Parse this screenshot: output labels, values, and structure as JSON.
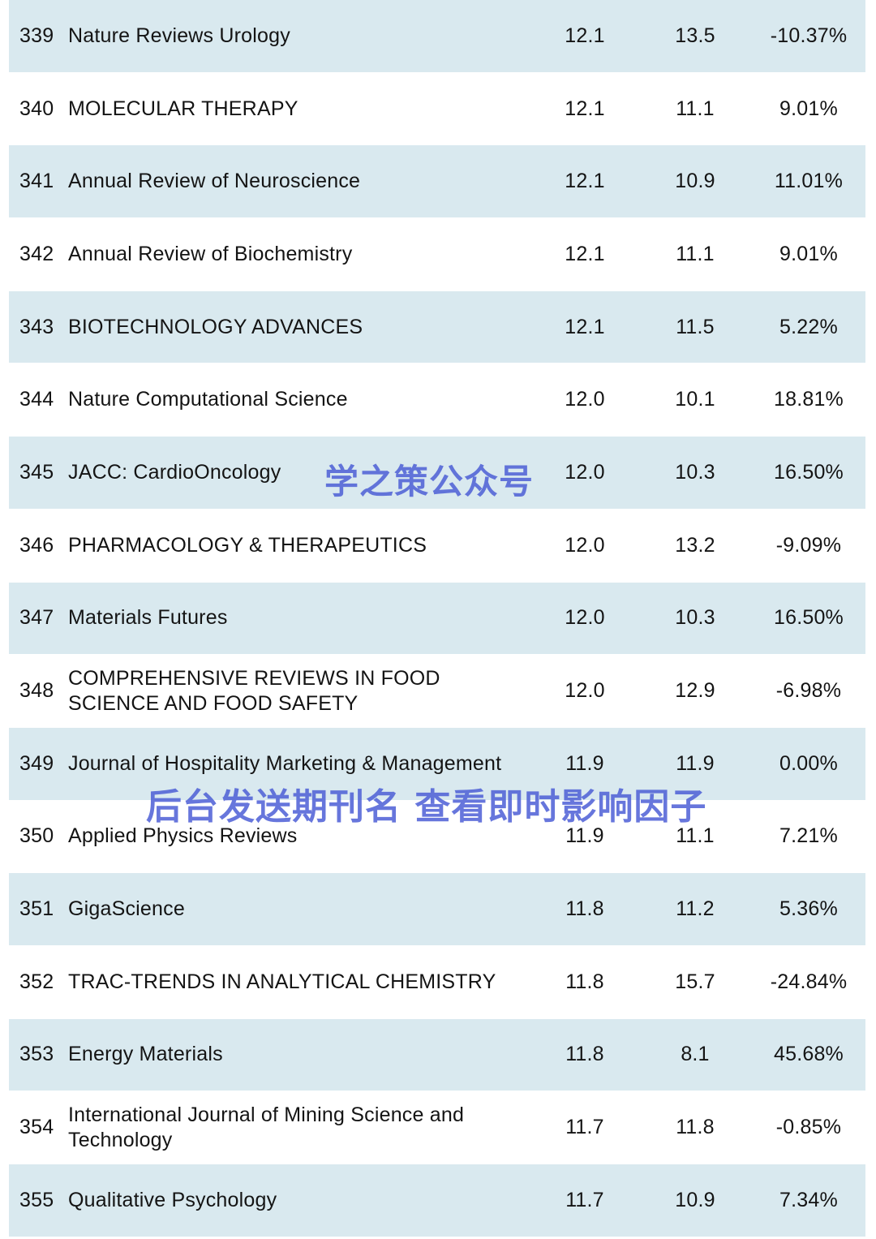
{
  "rows": [
    {
      "rank": "339",
      "journal": "Nature Reviews Urology",
      "if_new": "12.1",
      "if_old": "13.5",
      "change": "-10.37%"
    },
    {
      "rank": "340",
      "journal": "MOLECULAR THERAPY",
      "if_new": "12.1",
      "if_old": "11.1",
      "change": "9.01%"
    },
    {
      "rank": "341",
      "journal": "Annual Review of Neuroscience",
      "if_new": "12.1",
      "if_old": "10.9",
      "change": "11.01%"
    },
    {
      "rank": "342",
      "journal": "Annual Review of Biochemistry",
      "if_new": "12.1",
      "if_old": "11.1",
      "change": "9.01%"
    },
    {
      "rank": "343",
      "journal": "BIOTECHNOLOGY ADVANCES",
      "if_new": "12.1",
      "if_old": "11.5",
      "change": "5.22%"
    },
    {
      "rank": "344",
      "journal": "Nature Computational Science",
      "if_new": "12.0",
      "if_old": "10.1",
      "change": "18.81%"
    },
    {
      "rank": "345",
      "journal": "JACC: CardioOncology",
      "if_new": "12.0",
      "if_old": "10.3",
      "change": "16.50%"
    },
    {
      "rank": "346",
      "journal": "PHARMACOLOGY & THERAPEUTICS",
      "if_new": "12.0",
      "if_old": "13.2",
      "change": "-9.09%"
    },
    {
      "rank": "347",
      "journal": "Materials Futures",
      "if_new": "12.0",
      "if_old": "10.3",
      "change": "16.50%"
    },
    {
      "rank": "348",
      "journal": "COMPREHENSIVE REVIEWS IN FOOD SCIENCE AND FOOD SAFETY",
      "if_new": "12.0",
      "if_old": "12.9",
      "change": "-6.98%"
    },
    {
      "rank": "349",
      "journal": "Journal of Hospitality Marketing & Management",
      "if_new": "11.9",
      "if_old": "11.9",
      "change": "0.00%"
    },
    {
      "rank": "350",
      "journal": "Applied Physics Reviews",
      "if_new": "11.9",
      "if_old": "11.1",
      "change": "7.21%"
    },
    {
      "rank": "351",
      "journal": "GigaScience",
      "if_new": "11.8",
      "if_old": "11.2",
      "change": "5.36%"
    },
    {
      "rank": "352",
      "journal": "TRAC-TRENDS IN ANALYTICAL CHEMISTRY",
      "if_new": "11.8",
      "if_old": "15.7",
      "change": "-24.84%"
    },
    {
      "rank": "353",
      "journal": "Energy Materials",
      "if_new": "11.8",
      "if_old": "8.1",
      "change": "45.68%"
    },
    {
      "rank": "354",
      "journal": "International Journal of Mining Science and Technology",
      "if_new": "11.7",
      "if_old": "11.8",
      "change": "-0.85%"
    },
    {
      "rank": "355",
      "journal": "Qualitative Psychology",
      "if_new": "11.7",
      "if_old": "10.9",
      "change": "7.34%"
    }
  ],
  "watermarks": {
    "top": "学之策公众号",
    "bottom": "后台发送期刊名 查看即时影响因子"
  },
  "colors": {
    "shaded_row": "#d9e9ef",
    "plain_row": "#ffffff",
    "watermark": "#4d5fd6"
  }
}
